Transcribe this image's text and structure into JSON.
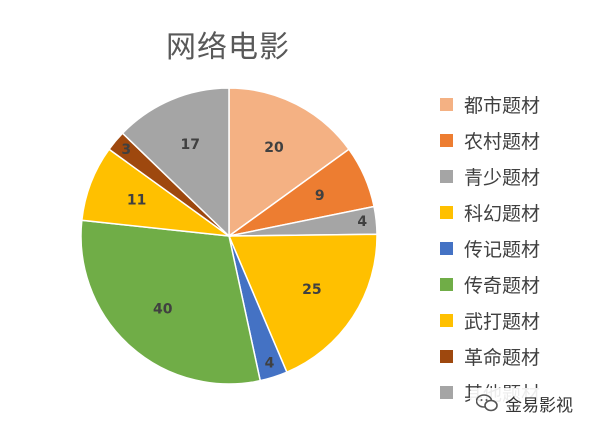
{
  "chart_data": {
    "type": "pie",
    "title": "网络电影",
    "categories": [
      "都市题材",
      "农村题材",
      "青少题材",
      "科幻题材",
      "传记题材",
      "传奇题材",
      "武打题材",
      "革命题材",
      "其他题材"
    ],
    "values": [
      20,
      9,
      4,
      25,
      4,
      40,
      11,
      3,
      17
    ],
    "colors": [
      "#f4b183",
      "#ed7d31",
      "#a5a5a5",
      "#ffc000",
      "#4472c4",
      "#70ad47",
      "#ffc000",
      "#9e480e",
      "#a5a5a5"
    ],
    "data_labels": [
      "20",
      "9",
      "4",
      "25",
      "4",
      "40",
      "11",
      "3",
      "17"
    ],
    "start_angle": "12 o'clock",
    "direction": "clockwise",
    "legend_position": "right"
  },
  "watermark": {
    "text": "金易影视",
    "icon": "wechat-icon"
  }
}
